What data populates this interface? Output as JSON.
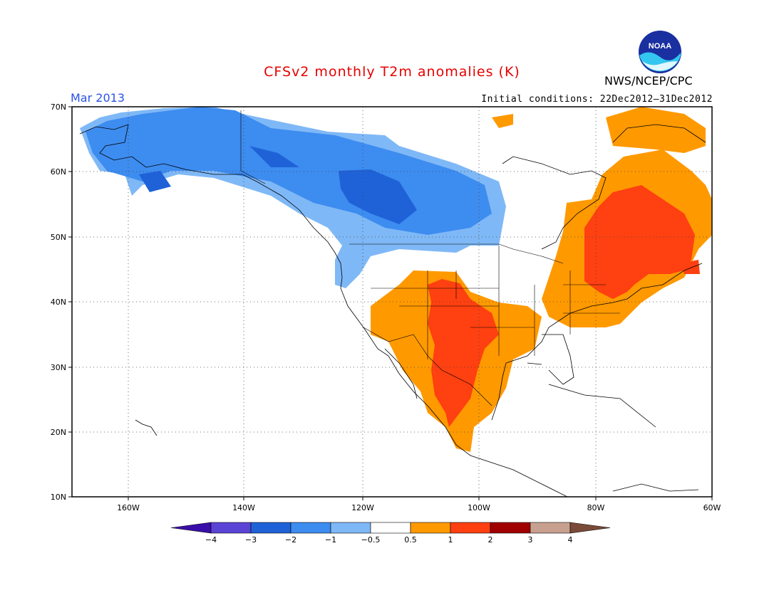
{
  "header": {
    "title": "CFSv2 monthly T2m anomalies (K)",
    "valid_month": "Mar 2013",
    "initial_conditions": "Initial conditions: 22Dec2012–31Dec2012",
    "agency": "NWS/NCEP/CPC",
    "logo_text": "NOAA",
    "logo_icon": "noaa-logo-icon"
  },
  "map": {
    "projection": "lat-lon",
    "extent": {
      "lon": [
        -172,
        -60
      ],
      "lat": [
        10,
        70
      ]
    },
    "lat_labels": [
      "70N",
      "60N",
      "50N",
      "40N",
      "30N",
      "20N",
      "10N"
    ],
    "lon_labels": [
      "160W",
      "140W",
      "120W",
      "100W",
      "80W",
      "60W"
    ],
    "gridlines": "dotted"
  },
  "colorbar": {
    "labels": [
      "−4",
      "−3",
      "−2",
      "−1",
      "−0.5",
      "0.5",
      "1",
      "2",
      "3",
      "4"
    ],
    "bins": [
      {
        "color": "#3a0ea8",
        "range": "< -4"
      },
      {
        "color": "#5a44d6",
        "range": "-4 to -3"
      },
      {
        "color": "#1f62d8",
        "range": "-3 to -2"
      },
      {
        "color": "#3d8cf0",
        "range": "-2 to -1"
      },
      {
        "color": "#7fb8f6",
        "range": "-1 to -0.5"
      },
      {
        "color": "#ffffff",
        "range": "-0.5 to 0.5"
      },
      {
        "color": "#ff9900",
        "range": "0.5 to 1"
      },
      {
        "color": "#ff4010",
        "range": "1 to 2"
      },
      {
        "color": "#a00000",
        "range": "2 to 3"
      },
      {
        "color": "#c8a090",
        "range": "3 to 4"
      },
      {
        "color": "#7a4a38",
        "range": "> 4"
      }
    ]
  }
}
